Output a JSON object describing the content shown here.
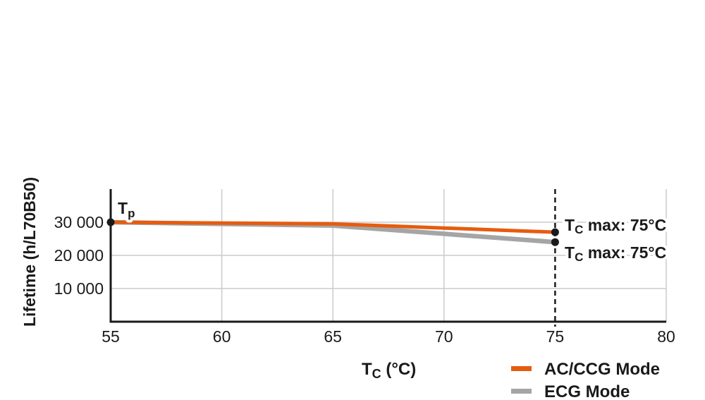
{
  "figure": {
    "background": "#ffffff"
  },
  "chart_data": {
    "type": "line",
    "title": "",
    "xlabel": {
      "main": "T",
      "sub": "C",
      "rest": " (°C)"
    },
    "ylabel": "Lifetime (h/L70B50)",
    "xlim": [
      55,
      80
    ],
    "ylim": [
      0,
      40000
    ],
    "xticks": [
      {
        "value": 55,
        "label": "55"
      },
      {
        "value": 60,
        "label": "60"
      },
      {
        "value": 65,
        "label": "65"
      },
      {
        "value": 70,
        "label": "70"
      },
      {
        "value": 75,
        "label": "75"
      },
      {
        "value": 80,
        "label": "80"
      }
    ],
    "yticks": [
      {
        "value": 10000,
        "label": "10 000"
      },
      {
        "value": 20000,
        "label": "20 000"
      },
      {
        "value": 30000,
        "label": "30 000"
      }
    ],
    "grid_x_values": [
      60,
      65,
      70,
      80
    ],
    "grid_on": true,
    "dashed_vline_x": 75,
    "series": [
      {
        "name": "AC/CCG Mode",
        "color": "#E65C0F",
        "points": [
          [
            55,
            30000
          ],
          [
            65,
            29500
          ],
          [
            75,
            27000
          ]
        ]
      },
      {
        "name": "ECG Mode",
        "color": "#A5A5A5",
        "points": [
          [
            55,
            30000
          ],
          [
            65,
            29000
          ],
          [
            75,
            24000
          ]
        ]
      }
    ],
    "markers": {
      "color": "#1a1a1a",
      "points": [
        [
          55,
          30000
        ],
        [
          75,
          27000
        ],
        [
          75,
          24000
        ]
      ]
    },
    "annotations": {
      "tp": {
        "main": "T",
        "sub": "p"
      },
      "tc_max_top": {
        "main": "T",
        "sub": "C",
        "rest": " max: 75°C"
      },
      "tc_max_bottom": {
        "main": "T",
        "sub": "C",
        "rest": " max: 75°C"
      }
    },
    "legend": [
      {
        "label": "AC/CCG Mode",
        "color": "#E65C0F"
      },
      {
        "label": "ECG Mode",
        "color": "#A5A5A5"
      }
    ],
    "colors": {
      "axis": "#1a1a1a",
      "grid": "#cbcbcb",
      "text": "#1a1a1a"
    },
    "legend_position": "bottom-right"
  }
}
